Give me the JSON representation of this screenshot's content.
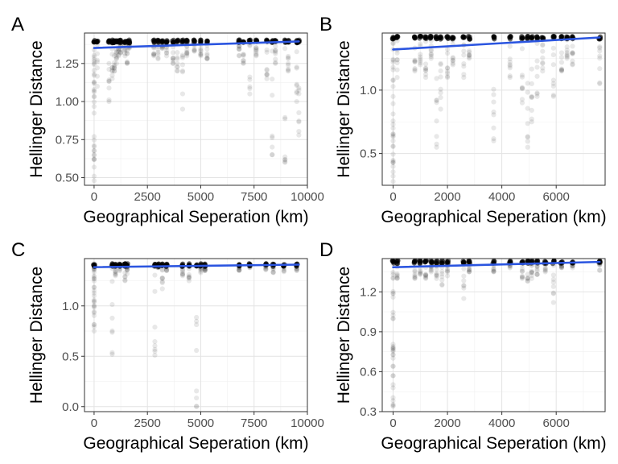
{
  "chart_data": [
    {
      "panel": "A",
      "type": "scatter",
      "xlabel": "Geographical Seperation (km)",
      "ylabel": "Hellinger Distance",
      "xlim": [
        -450,
        10000
      ],
      "ylim": [
        0.45,
        1.45
      ],
      "xticks": [
        0,
        2500,
        5000,
        7500,
        10000
      ],
      "xtick_labels": [
        "0",
        "2500",
        "5000",
        "7500",
        "10000"
      ],
      "yticks": [
        0.5,
        0.75,
        1.0,
        1.25
      ],
      "ytick_labels": [
        "0.50",
        "0.75",
        "1.00",
        "1.25"
      ],
      "grid": true,
      "point_color": "#000000",
      "trend_color": "#2b55e0",
      "trend": [
        [
          0,
          1.352
        ],
        [
          9600,
          1.395
        ]
      ],
      "columns": [
        [
          0,
          0.48
        ],
        [
          150,
          1.1
        ],
        [
          700,
          1.0
        ],
        [
          850,
          1.15
        ],
        [
          950,
          1.2
        ],
        [
          1050,
          1.25
        ],
        [
          1150,
          1.3
        ],
        [
          1250,
          1.32
        ],
        [
          1450,
          1.3
        ],
        [
          1550,
          1.25
        ],
        [
          1650,
          1.35
        ],
        [
          2800,
          1.3
        ],
        [
          3000,
          1.28
        ],
        [
          3200,
          1.35
        ],
        [
          3400,
          1.3
        ],
        [
          3700,
          1.25
        ],
        [
          3900,
          1.2
        ],
        [
          4150,
          0.95
        ],
        [
          4350,
          1.3
        ],
        [
          4700,
          1.33
        ],
        [
          5000,
          1.3
        ],
        [
          5300,
          1.28
        ],
        [
          6800,
          1.3
        ],
        [
          7000,
          1.25
        ],
        [
          7300,
          1.05
        ],
        [
          7600,
          1.3
        ],
        [
          8100,
          1.15
        ],
        [
          8350,
          0.65
        ],
        [
          8500,
          1.25
        ],
        [
          8950,
          0.6
        ],
        [
          9100,
          1.2
        ],
        [
          9500,
          1.0
        ],
        [
          9600,
          0.78
        ]
      ]
    },
    {
      "panel": "B",
      "type": "scatter",
      "xlabel": "Geographical Seperation (km)",
      "ylabel": "Hellinger Distance",
      "xlim": [
        -400,
        7800
      ],
      "ylim": [
        0.25,
        1.45
      ],
      "xticks": [
        0,
        2000,
        4000,
        6000
      ],
      "xtick_labels": [
        "0",
        "2000",
        "4000",
        "6000"
      ],
      "yticks": [
        0.5,
        1.0
      ],
      "ytick_labels": [
        "0.5",
        "1.0"
      ],
      "grid": true,
      "point_color": "#000000",
      "trend_color": "#2b55e0",
      "trend": [
        [
          0,
          1.32
        ],
        [
          7600,
          1.415
        ]
      ],
      "columns": [
        [
          0,
          0.28
        ],
        [
          150,
          1.1
        ],
        [
          800,
          1.15
        ],
        [
          1000,
          1.2
        ],
        [
          1200,
          1.1
        ],
        [
          1400,
          1.25
        ],
        [
          1600,
          0.55
        ],
        [
          1750,
          0.85
        ],
        [
          2000,
          1.1
        ],
        [
          2200,
          1.2
        ],
        [
          2600,
          1.1
        ],
        [
          2800,
          1.25
        ],
        [
          3700,
          0.6
        ],
        [
          4300,
          1.1
        ],
        [
          4750,
          0.9
        ],
        [
          4950,
          0.55
        ],
        [
          5100,
          0.75
        ],
        [
          5300,
          0.95
        ],
        [
          5500,
          1.15
        ],
        [
          5900,
          0.95
        ],
        [
          6200,
          1.15
        ],
        [
          6400,
          1.25
        ],
        [
          6600,
          1.2
        ],
        [
          7600,
          1.05
        ]
      ]
    },
    {
      "panel": "C",
      "type": "scatter",
      "xlabel": "Geographical Seperation (km)",
      "ylabel": "Hellinger Distance",
      "xlim": [
        -450,
        10000
      ],
      "ylim": [
        -0.05,
        1.47
      ],
      "xticks": [
        0,
        2500,
        5000,
        7500,
        10000
      ],
      "xtick_labels": [
        "0",
        "2500",
        "5000",
        "7500",
        "10000"
      ],
      "yticks": [
        0.0,
        0.5,
        1.0
      ],
      "ytick_labels": [
        "0.0",
        "0.5",
        "1.0"
      ],
      "grid": true,
      "point_color": "#000000",
      "trend_color": "#2b55e0",
      "trend": [
        [
          0,
          1.385
        ],
        [
          9600,
          1.41
        ]
      ],
      "columns": [
        [
          0,
          0.75
        ],
        [
          850,
          0.52
        ],
        [
          1000,
          1.3
        ],
        [
          1200,
          1.35
        ],
        [
          1450,
          1.25
        ],
        [
          1550,
          1.32
        ],
        [
          2850,
          0.51
        ],
        [
          3000,
          1.38
        ],
        [
          3200,
          1.17
        ],
        [
          3400,
          1.35
        ],
        [
          4150,
          1.3
        ],
        [
          4450,
          1.25
        ],
        [
          4800,
          0.0
        ],
        [
          5000,
          1.33
        ],
        [
          5200,
          1.35
        ],
        [
          6800,
          1.35
        ],
        [
          7300,
          1.38
        ],
        [
          8050,
          1.36
        ],
        [
          8400,
          1.33
        ],
        [
          8900,
          1.34
        ],
        [
          9500,
          1.35
        ]
      ]
    },
    {
      "panel": "D",
      "type": "scatter",
      "xlabel": "Geographical Seperation (km)",
      "ylabel": "Hellinger Distance",
      "xlim": [
        -400,
        7800
      ],
      "ylim": [
        0.3,
        1.45
      ],
      "xticks": [
        0,
        2000,
        4000,
        6000
      ],
      "xtick_labels": [
        "0",
        "2000",
        "4000",
        "6000"
      ],
      "yticks": [
        0.3,
        0.6,
        0.9,
        1.2
      ],
      "ytick_labels": [
        "0.3",
        "0.6",
        "0.9",
        "1.2"
      ],
      "grid": true,
      "point_color": "#000000",
      "trend_color": "#2b55e0",
      "trend": [
        [
          0,
          1.385
        ],
        [
          7600,
          1.425
        ]
      ],
      "columns": [
        [
          0,
          0.34
        ],
        [
          150,
          1.3
        ],
        [
          800,
          1.3
        ],
        [
          1000,
          1.33
        ],
        [
          1200,
          1.3
        ],
        [
          1400,
          1.35
        ],
        [
          1600,
          1.3
        ],
        [
          1800,
          1.25
        ],
        [
          2000,
          1.32
        ],
        [
          2600,
          1.15
        ],
        [
          2800,
          1.35
        ],
        [
          3700,
          1.35
        ],
        [
          4300,
          1.38
        ],
        [
          4750,
          1.3
        ],
        [
          4950,
          1.28
        ],
        [
          5100,
          1.3
        ],
        [
          5300,
          1.33
        ],
        [
          5600,
          1.35
        ],
        [
          5900,
          1.12
        ],
        [
          6200,
          1.38
        ],
        [
          6600,
          1.38
        ],
        [
          7600,
          1.36
        ]
      ]
    }
  ]
}
